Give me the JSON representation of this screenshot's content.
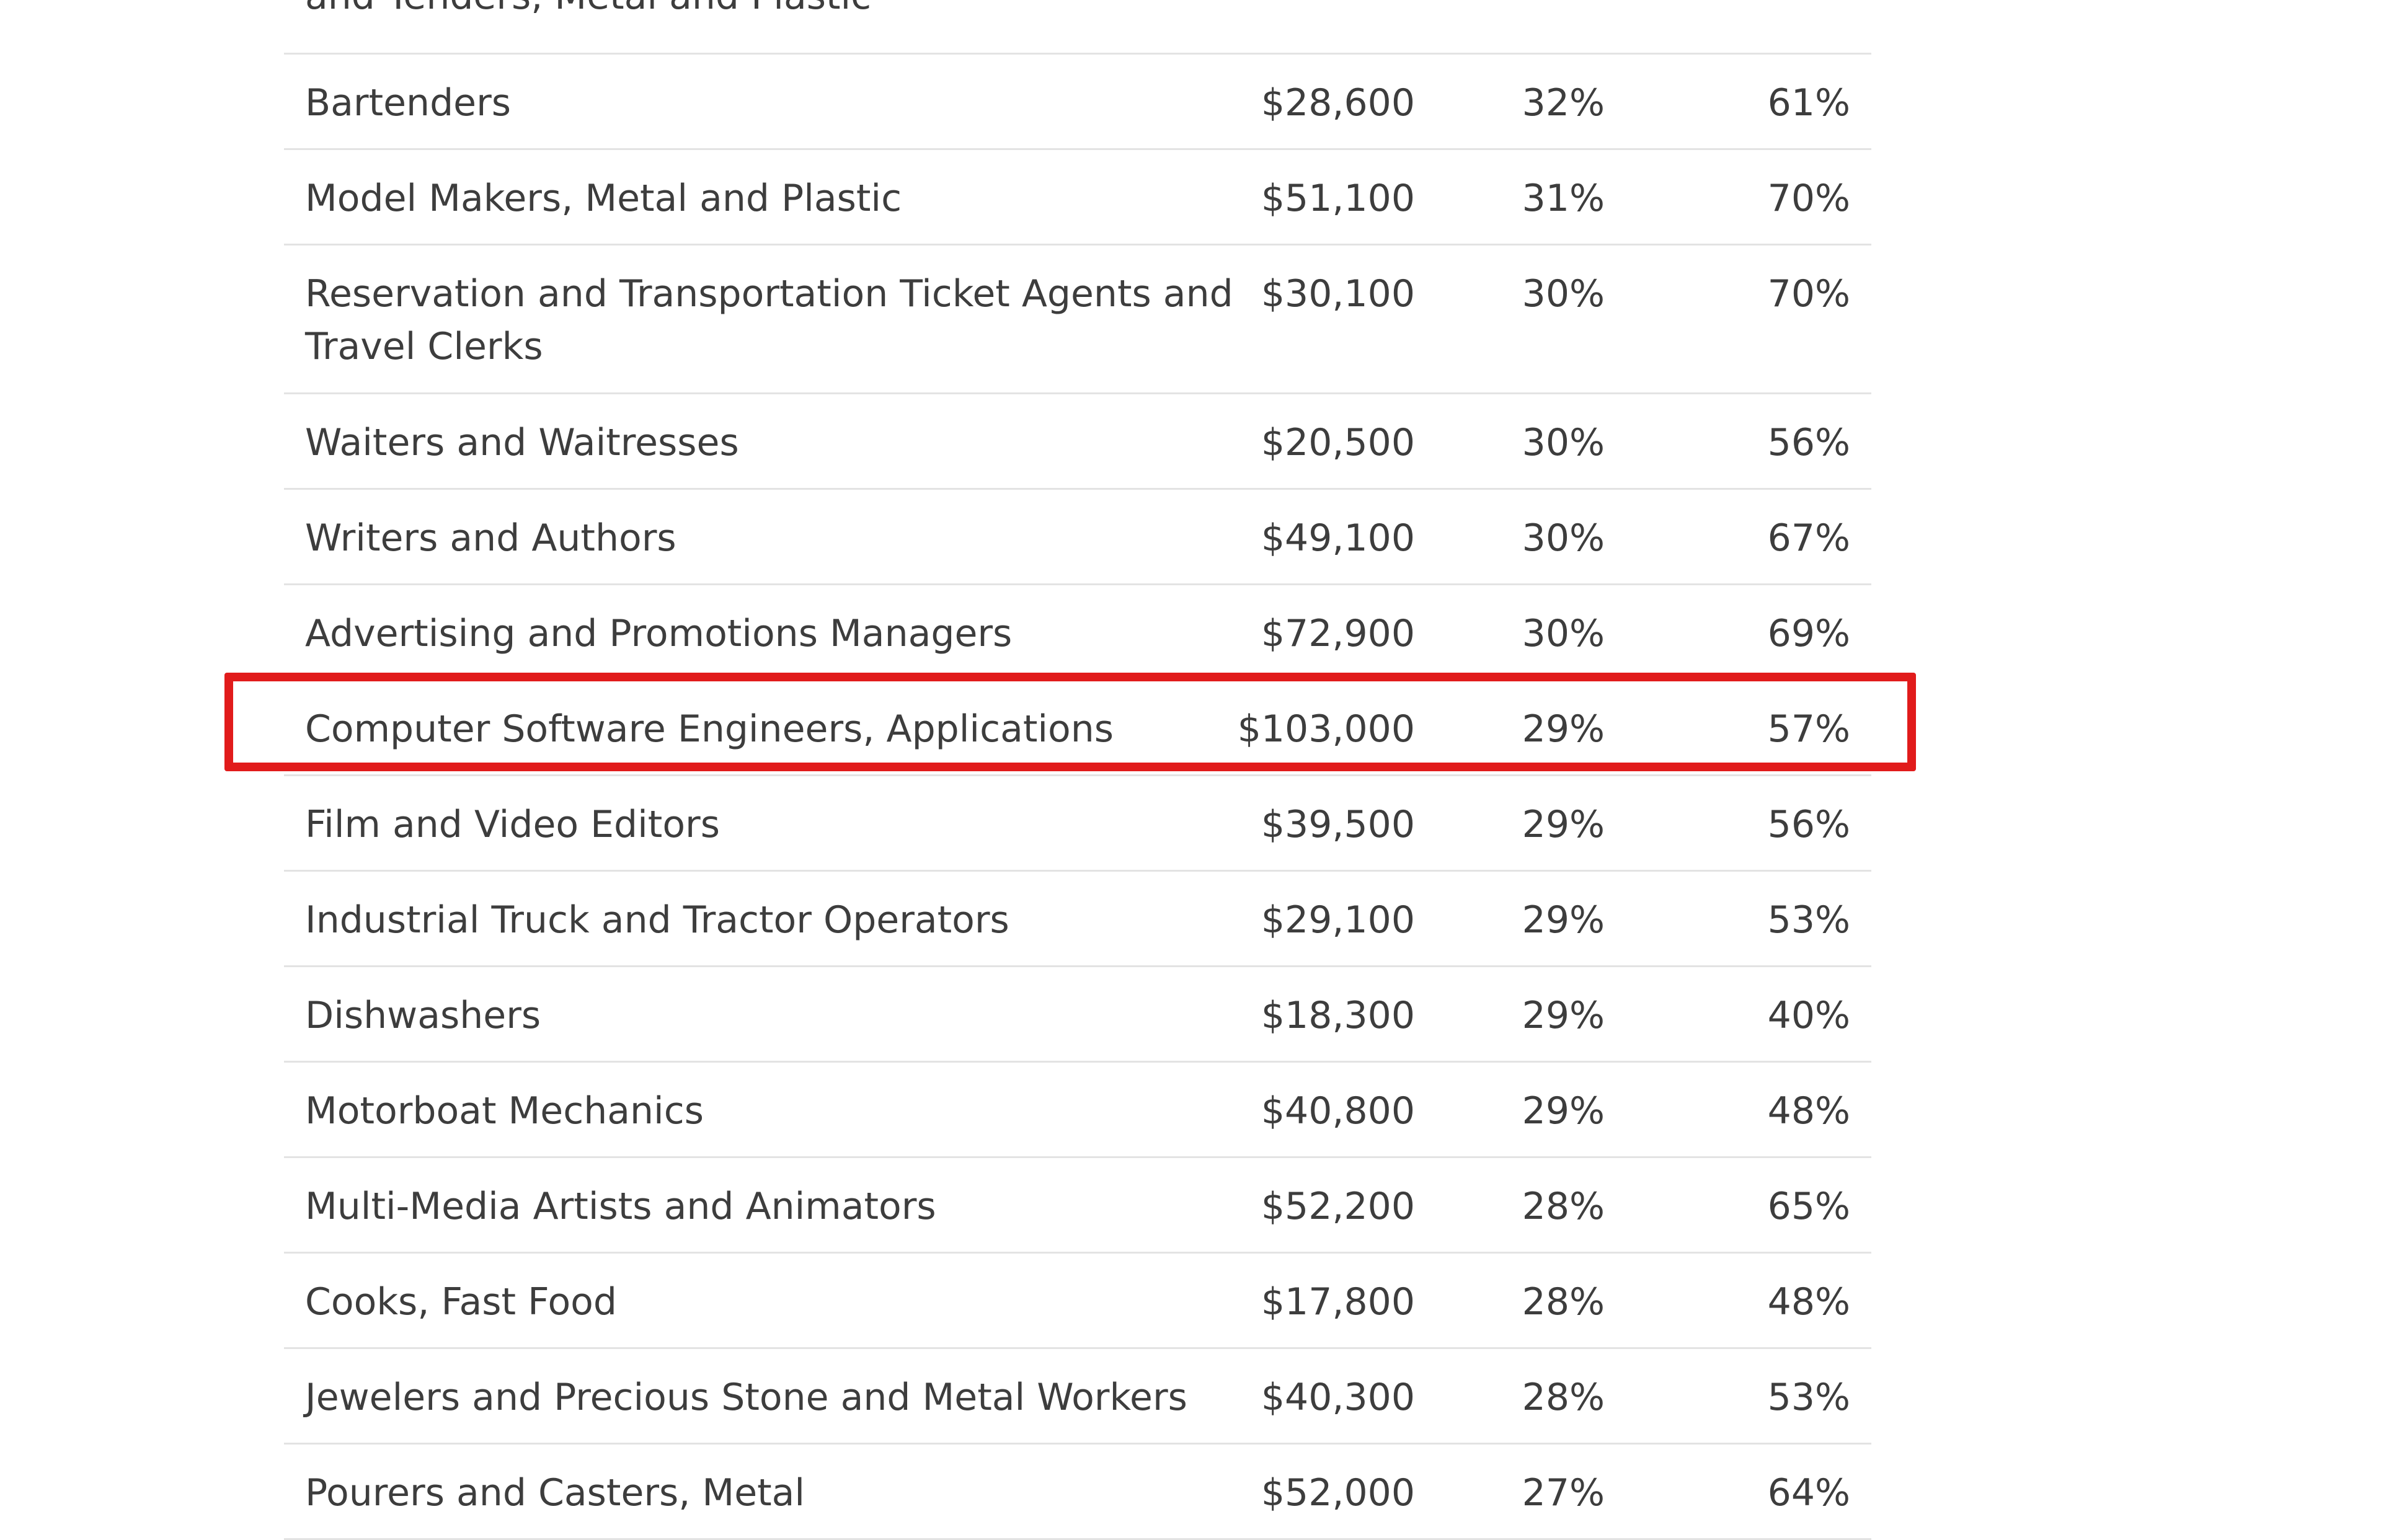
{
  "table": {
    "partial_row_text": "and Tenders, Metal and Plastic",
    "rows": [
      {
        "occupation": "Bartenders",
        "salary": "$28,600",
        "pct_a": "32%",
        "pct_b": "61%"
      },
      {
        "occupation": "Model Makers, Metal and Plastic",
        "salary": "$51,100",
        "pct_a": "31%",
        "pct_b": "70%"
      },
      {
        "occupation": "Reservation and Transportation Ticket Agents and Travel Clerks",
        "salary": "$30,100",
        "pct_a": "30%",
        "pct_b": "70%"
      },
      {
        "occupation": "Waiters and Waitresses",
        "salary": "$20,500",
        "pct_a": "30%",
        "pct_b": "56%"
      },
      {
        "occupation": "Writers and Authors",
        "salary": "$49,100",
        "pct_a": "30%",
        "pct_b": "67%"
      },
      {
        "occupation": "Advertising and Promotions Managers",
        "salary": "$72,900",
        "pct_a": "30%",
        "pct_b": "69%"
      },
      {
        "occupation": "Computer Software Engineers, Applications",
        "salary": "$103,000",
        "pct_a": "29%",
        "pct_b": "57%"
      },
      {
        "occupation": "Film and Video Editors",
        "salary": "$39,500",
        "pct_a": "29%",
        "pct_b": "56%"
      },
      {
        "occupation": "Industrial Truck and Tractor Operators",
        "salary": "$29,100",
        "pct_a": "29%",
        "pct_b": "53%"
      },
      {
        "occupation": "Dishwashers",
        "salary": "$18,300",
        "pct_a": "29%",
        "pct_b": "40%"
      },
      {
        "occupation": "Motorboat Mechanics",
        "salary": "$40,800",
        "pct_a": "29%",
        "pct_b": "48%"
      },
      {
        "occupation": "Multi-Media Artists and Animators",
        "salary": "$52,200",
        "pct_a": "28%",
        "pct_b": "65%"
      },
      {
        "occupation": "Cooks, Fast Food",
        "salary": "$17,800",
        "pct_a": "28%",
        "pct_b": "48%"
      },
      {
        "occupation": "Jewelers and Precious Stone and Metal Workers",
        "salary": "$40,300",
        "pct_a": "28%",
        "pct_b": "53%"
      },
      {
        "occupation": "Pourers and Casters, Metal",
        "salary": "$52,000",
        "pct_a": "27%",
        "pct_b": "64%"
      }
    ]
  },
  "colors": {
    "text": "#3d3d3d",
    "divider": "#e3e3e3",
    "highlight_box": "#e11b1b"
  }
}
